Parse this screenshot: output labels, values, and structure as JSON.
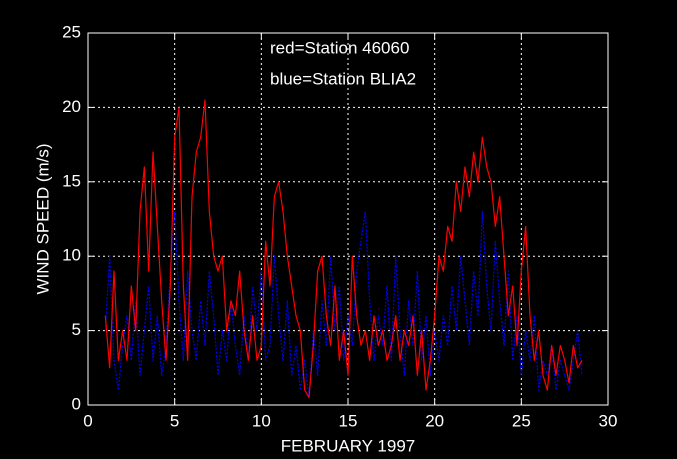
{
  "chart_data": {
    "type": "line",
    "xlabel": "FEBRUARY 1997",
    "ylabel": "WIND SPEED (m/s)",
    "x": [
      1,
      1.25,
      1.5,
      1.75,
      2,
      2.25,
      2.5,
      2.75,
      3,
      3.25,
      3.5,
      3.75,
      4,
      4.25,
      4.5,
      4.75,
      5,
      5.25,
      5.5,
      5.75,
      6,
      6.25,
      6.5,
      6.75,
      7,
      7.25,
      7.5,
      7.75,
      8,
      8.25,
      8.5,
      8.75,
      9,
      9.25,
      9.5,
      9.75,
      10,
      10.25,
      10.5,
      10.75,
      11,
      11.25,
      11.5,
      11.75,
      12,
      12.25,
      12.5,
      12.75,
      13,
      13.25,
      13.5,
      13.75,
      14,
      14.25,
      14.5,
      14.75,
      15,
      15.25,
      15.5,
      15.75,
      16,
      16.25,
      16.5,
      16.75,
      17,
      17.25,
      17.5,
      17.75,
      18,
      18.25,
      18.5,
      18.75,
      19,
      19.25,
      19.5,
      19.75,
      20,
      20.25,
      20.5,
      20.75,
      21,
      21.25,
      21.5,
      21.75,
      22,
      22.25,
      22.5,
      22.75,
      23,
      23.25,
      23.5,
      23.75,
      24,
      24.25,
      24.5,
      24.75,
      25,
      25.25,
      25.5,
      25.75,
      26,
      26.25,
      26.5,
      26.75,
      27,
      27.25,
      27.5,
      27.75,
      28,
      28.25,
      28.5
    ],
    "series": [
      {
        "name": "red=Station 46060",
        "color": "#ff0000",
        "dash": false,
        "values": [
          6,
          2.5,
          9,
          3,
          5,
          3,
          8,
          5,
          13,
          16,
          9,
          17,
          12,
          7,
          3,
          8,
          18,
          20,
          8,
          3,
          14,
          17,
          18,
          20.5,
          13,
          10,
          9,
          10,
          5,
          7,
          6,
          9,
          5,
          3,
          6,
          3,
          4,
          11,
          8,
          14,
          15,
          13,
          10,
          8,
          6,
          5,
          1,
          0.5,
          4,
          9,
          10,
          6,
          4,
          8,
          3,
          5,
          2,
          10,
          6,
          4,
          5,
          3,
          6,
          4,
          5,
          3,
          4,
          6,
          3,
          5,
          4,
          6,
          2,
          5,
          1,
          3,
          6,
          10,
          9,
          12,
          11,
          15,
          13,
          16,
          14,
          17,
          15,
          18,
          16,
          15,
          12,
          14,
          10,
          6,
          8,
          4,
          9,
          12,
          6,
          3,
          5,
          2,
          1,
          4,
          2,
          4,
          3,
          1.5,
          4,
          2.5,
          3
        ]
      },
      {
        "name": "blue=Station BLIA2",
        "color": "#0000ff",
        "dash": true,
        "values": [
          5,
          10,
          3,
          1,
          4,
          6,
          3,
          7,
          2,
          5,
          8,
          3,
          6,
          2,
          4,
          9,
          13,
          7,
          3,
          9,
          5,
          3,
          7,
          4,
          9,
          6,
          2,
          5,
          3,
          7,
          4,
          2,
          6,
          3,
          8,
          5,
          9,
          3,
          4,
          10,
          6,
          3,
          7,
          2,
          4,
          1,
          3,
          0.5,
          5,
          2,
          7,
          4,
          10,
          5,
          8,
          3,
          6,
          4,
          9,
          11,
          13,
          7,
          3,
          6,
          4,
          8,
          3,
          10,
          5,
          2,
          7,
          4,
          9,
          3,
          6,
          2,
          5,
          3,
          6,
          4,
          8,
          5,
          10,
          7,
          4,
          9,
          6,
          13,
          8,
          5,
          11,
          7,
          4,
          9,
          3,
          6,
          2,
          5,
          3,
          6,
          1,
          3,
          2,
          4,
          1,
          3,
          2,
          1,
          3,
          5,
          2
        ]
      }
    ],
    "xlim": [
      0,
      30
    ],
    "ylim": [
      0,
      25
    ],
    "xticks": [
      0,
      5,
      10,
      15,
      20,
      25,
      30
    ],
    "yticks": [
      0,
      5,
      10,
      15,
      20,
      25
    ],
    "grid": true
  }
}
